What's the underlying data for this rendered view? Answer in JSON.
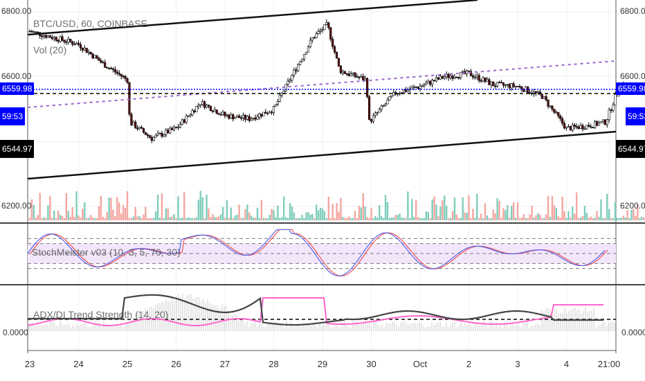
{
  "symbol_title": "BTC/USD, 60, COINBASE",
  "volume_legend": "Vol (20)",
  "stoch_legend": "StochMeister v03 (10, 3, 5, 70, 30)",
  "adx_legend": "ADX/DI Trend Strength (14, 20)",
  "price_axis": {
    "labels": [
      "6800.00",
      "6600.00",
      "6200.00"
    ],
    "adx_label": "0.0000"
  },
  "tags": {
    "last_price": "6559.98",
    "countdown": "59:53",
    "level": "6544.97"
  },
  "colors": {
    "blue_tag": "#0000ff",
    "black_tag": "#000000",
    "up_vol": "#7fcdbb",
    "down_vol": "#f4a6a0",
    "pink": "#ff66cc"
  },
  "chart_data": {
    "type": "candlestick",
    "x_ticks": [
      "23",
      "24",
      "25",
      "26",
      "27",
      "28",
      "29",
      "30",
      "Oct",
      "2",
      "3",
      "4",
      "21:00"
    ],
    "ylim": [
      6200,
      6800
    ],
    "close_path_days": [
      0,
      0.5,
      1,
      1.5,
      2,
      2.05,
      2.5,
      3,
      3.5,
      4,
      4.5,
      5,
      5.8,
      6.1,
      6.35,
      6.5,
      6.9,
      6.95,
      7.5,
      8,
      8.5,
      9,
      9.5,
      10,
      10.5,
      11,
      11.5,
      11.8,
      12.1,
      12.5,
      12.8
    ],
    "close_path_prices": [
      6740,
      6720,
      6700,
      6640,
      6590,
      6460,
      6410,
      6440,
      6520,
      6480,
      6470,
      6500,
      6720,
      6760,
      6620,
      6610,
      6590,
      6460,
      6550,
      6570,
      6600,
      6610,
      6575,
      6570,
      6540,
      6440,
      6450,
      6460,
      6575,
      6560,
      6565
    ],
    "stoch_levels": [
      80,
      70,
      50,
      30,
      20
    ],
    "adx_threshold": 20
  }
}
